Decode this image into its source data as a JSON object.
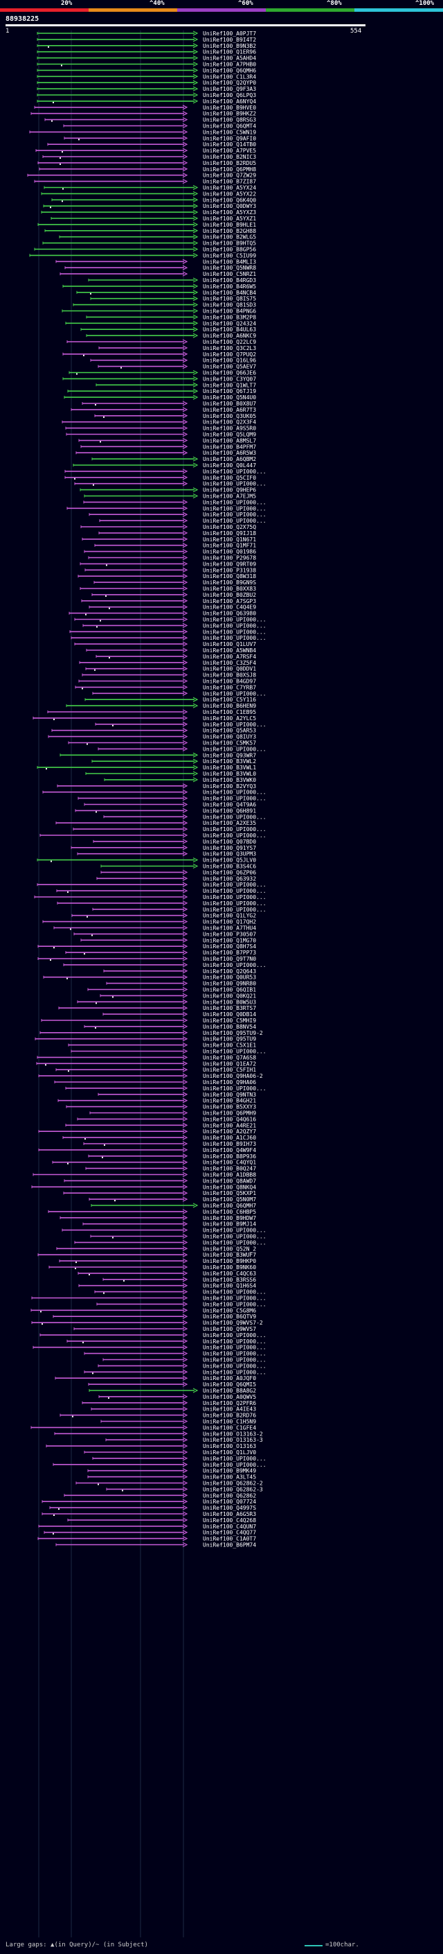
{
  "legend": {
    "segments": [
      {
        "label": "20%",
        "color": "#e8202a"
      },
      {
        "label": "^40%",
        "color": "#e88a1a"
      },
      {
        "label": "^60%",
        "color": "#9b3fc4"
      },
      {
        "label": "^80%",
        "color": "#2fa82f"
      },
      {
        "label": "^100%",
        "color": "#2ec4d8"
      }
    ]
  },
  "query": {
    "id": "88938225",
    "start": "1",
    "end": "554"
  },
  "colors": {
    "purple": "#c75bd8",
    "green": "#44d04a",
    "background": "#000018"
  },
  "hits": [
    "UniRef100_A0PJT7",
    "UniRef100_B9I4T2",
    "UniRef100_B9N3B2",
    "UniRef100_Q1ER96",
    "UniRef100_A5AHD4",
    "UniRef100_A7PHB0",
    "UniRef100_Q6QMH6",
    "UniRef100_C1L3R4",
    "UniRef100_Q2QYP0",
    "UniRef100_Q9F3A3",
    "UniRef100_Q6LPQ3",
    "UniRef100_A6NYQ4",
    "UniRef100_B9HVE0",
    "UniRef100_B9HKZ2",
    "UniRef100_Q8RSG3",
    "UniRef100_Q6QMT4",
    "UniRef100_C5WN19",
    "UniRef100_Q9AFI0",
    "UniRef100_Q14TB0",
    "UniRef100_A7PVE5",
    "UniRef100_B2NIC3",
    "UniRef100_B2RDU5",
    "UniRef100_Q6PMH8",
    "UniRef100_Q7ZW29",
    "UniRef100_B7ZI87",
    "UniRef100_A5YX24",
    "UniRef100_A5YX22",
    "UniRef100_Q6K4Q0",
    "UniRef100_Q0DWY3",
    "UniRef100_A5YXZ3",
    "UniRef100_A5YXZ1",
    "UniRef100_B9HLE1",
    "UniRef100_B2GH88",
    "UniRef100_B2WLG5",
    "UniRef100_B9HTQ5",
    "UniRef100_B8GP56",
    "UniRef100_C5IU99",
    "UniRef100_B4MLI3",
    "UniRef100_Q5NWR8",
    "UniRef100_C5NRZ1",
    "UniRef100_B4RGD3",
    "UniRef100_B4R6W5",
    "UniRef100_B4NCB4",
    "UniRef100_Q8IS75",
    "UniRef100_Q81SD3",
    "UniRef100_B4PNG6",
    "UniRef100_B3M2P8",
    "UniRef100_Q24324",
    "UniRef100_B4UL63",
    "UniRef100_A6NKC9",
    "UniRef100_Q22LC9",
    "UniRef100_Q3C2L3",
    "UniRef100_Q7PUQ2",
    "UniRef100_Q16L96",
    "UniRef100_Q5AEV7",
    "UniRef100_Q66JE6",
    "UniRef100_C3YQ07",
    "UniRef100_Q1WLT7",
    "UniRef100_Q6TJ19",
    "UniRef100_Q5N4U0",
    "UniRef100_B0X8U7",
    "UniRef100_A6R7T3",
    "UniRef100_Q3UK05",
    "UniRef100_Q2X3F4",
    "UniRef100_A9S5R0",
    "UniRef100_Q5LQM9",
    "UniRef100_A8MSL7",
    "UniRef100_B4PFM7",
    "UniRef100_A6R5W3",
    "UniRef100_A6QBM2",
    "UniRef100_Q0L447",
    "UniRef100_UPI000...",
    "UniRef100_Q5CIF0",
    "UniRef100_UPI000...",
    "UniRef100_Q9HEP6",
    "UniRef100_A7EJM5",
    "UniRef100_UPI000...",
    "UniRef100_UPI000...",
    "UniRef100_UPI000...",
    "UniRef100_UPI000...",
    "UniRef100_Q2X75Q",
    "UniRef100_Q9IJ18",
    "UniRef100_Q1N671",
    "UniRef100_Q1MF71",
    "UniRef100_Q01986",
    "UniRef100_P29678",
    "UniRef100_Q9RT09",
    "UniRef100_P31938",
    "UniRef100_Q8W318",
    "UniRef100_B9GN9S",
    "UniRef100_B0XX83",
    "UniRef100_B0ZBU2",
    "UniRef100_A7SGP3",
    "UniRef100_C4Q4E9",
    "UniRef100_Q63980",
    "UniRef100_UPI000...",
    "UniRef100_UPI000...",
    "UniRef100_UPI000...",
    "UniRef100_UPI000...",
    "UniRef100_Q1LUV7",
    "UniRef100_A5WNB4",
    "UniRef100_A7RSF4",
    "UniRef100_C3Z5F4",
    "UniRef100_Q0DDV1",
    "UniRef100_B0XSJ8",
    "UniRef100_B4GD97",
    "UniRef100_C7YRB7",
    "UniRef100_UPI000...",
    "UniRef100_C5Y116",
    "UniRef100_B6HEN9",
    "UniRef100_C1EB95",
    "UniRef100_A2YLC5",
    "UniRef100_UPI000...",
    "UniRef100_Q5AR53",
    "UniRef100_Q8IUY3",
    "UniRef100_C5MK57",
    "UniRef100_UPI000...",
    "UniRef100_Q93WR7",
    "UniRef100_B3VWL2",
    "UniRef100_B3VWL1",
    "UniRef100_B3VWL0",
    "UniRef100_B3VWK0",
    "UniRef100_B2VYQ3",
    "UniRef100_UPI000...",
    "UniRef100_UPI000...",
    "UniRef100_Q4T9A6",
    "UniRef100_Q6H891",
    "UniRef100_UPI000...",
    "UniRef100_A2XE35",
    "UniRef100_UPI000...",
    "UniRef100_UPI000...",
    "UniRef100_Q07BD0",
    "UniRef100_Q91YS7",
    "UniRef100_Q3UPM3",
    "UniRef100_Q5JLV0",
    "UniRef100_B3S4C6",
    "UniRef100_Q6ZP06",
    "UniRef100_Q63932",
    "UniRef100_UPI000...",
    "UniRef100_UPI000...",
    "UniRef100_UPI000...",
    "UniRef100_UPI000...",
    "UniRef100_UPI000...",
    "UniRef100_Q1LYG2",
    "UniRef100_Q17QH2",
    "UniRef100_A7THU4",
    "UniRef100_P30507",
    "UniRef100_Q1MG70",
    "UniRef100_Q8H7S4",
    "UniRef100_B7PP73",
    "UniRef100_Q9T7N0",
    "UniRef100_UPI000...",
    "UniRef100_Q2Q643",
    "UniRef100_Q0UR53",
    "UniRef100_Q9NR80",
    "UniRef100_Q6QIB1",
    "UniRef100_Q0KQ21",
    "UniRef100_B0W5U3",
    "UniRef100_B3RTS7",
    "UniRef100_Q0DB14",
    "UniRef100_C5MHI9",
    "UniRef100_B8NV54",
    "UniRef100_Q95TU9-2",
    "UniRef100_Q95TU9",
    "UniRef100_C5X1E1",
    "UniRef100_UPI000...",
    "UniRef100_Q7A6S8",
    "UniRef100_Q1EA72",
    "UniRef100_C5FIH1",
    "UniRef100_Q9HA06-2",
    "UniRef100_Q9HA06",
    "UniRef100_UPI000...",
    "UniRef100_Q9NTN3",
    "UniRef100_B4GH21",
    "UniRef100_B5XXY3",
    "UniRef100_Q6PMH9",
    "UniRef100_Q4Q616",
    "UniRef100_A4RE21",
    "UniRef100_A2QZY7",
    "UniRef100_A1CJ60",
    "UniRef100_B9IH73",
    "UniRef100_Q4W9F4",
    "UniRef100_B8P936",
    "UniRef100_C4QYQ1",
    "UniRef100_B0Q247",
    "UniRef100_A1DBB8",
    "UniRef100_Q8AWD7",
    "UniRef100_Q8NKQ4",
    "UniRef100_Q5KXP1",
    "UniRef100_Q5N0M7",
    "UniRef100_Q6QMH7",
    "UniRef100_C6HBP5",
    "UniRef100_B9HDW7",
    "UniRef100_B9MJ14",
    "UniRef100_UPI000...",
    "UniRef100_UPI000...",
    "UniRef100_UPI000...",
    "UniRef100_Q52N_2",
    "UniRef100_B3WUF7",
    "UniRef100_B9HKP0",
    "UniRef100_B9NK60",
    "UniRef100_C4QC63",
    "UniRef100_B3RSS6",
    "UniRef100_Q1H6S4",
    "UniRef100_UPI000...",
    "UniRef100_UPI000...",
    "UniRef100_UPI000...",
    "UniRef100_C5G8M6",
    "UniRef100_B6QTV9",
    "UniRef100_Q9WVS7-2",
    "UniRef100_Q9WVS7",
    "UniRef100_UPI000...",
    "UniRef100_UPI000...",
    "UniRef100_UPI000...",
    "UniRef100_UPI000...",
    "UniRef100_UPI000...",
    "UniRef100_UPI000...",
    "UniRef100_UPI000...",
    "UniRef100_A0JQF0",
    "UniRef100_Q6QMI5",
    "UniRef100_B8A8G2",
    "UniRef100_A0QWV5",
    "UniRef100_Q2PFR6",
    "UniRef100_A4IE43",
    "UniRef100_B2RD76",
    "UniRef100_C1H5N9",
    "UniRef100_C1GFE4",
    "UniRef100_O13163-2",
    "UniRef100_O13163-3",
    "UniRef100_O13163",
    "UniRef100_Q1LJV0",
    "UniRef100_UPI000...",
    "UniRef100_UPI000...",
    "UniRef100_B9MK49",
    "UniRef100_A3LT45",
    "UniRef100_Q62862-2",
    "UniRef100_Q62862-3",
    "UniRef100_Q62862",
    "UniRef100_Q07724",
    "UniRef100_Q4997S",
    "UniRef100_A6G5R3",
    "UniRef100_C4Q268",
    "UniRef100_C4QUN7",
    "UniRef100_C4QQ77",
    "UniRef100_C1A0T7",
    "UniRef100_B6PM74"
  ],
  "footer": {
    "gaps_text": "Large gaps: ▲(in Query)/~ (in Subject)",
    "scale_text": "=100char."
  }
}
